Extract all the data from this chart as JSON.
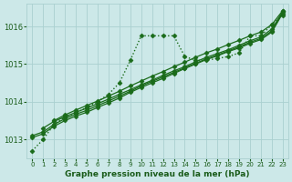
{
  "title": "Graphe pression niveau de la mer (hPa)",
  "background_color": "#cce8e8",
  "grid_color": "#aad0d0",
  "text_color": "#1a5c1a",
  "line_color": "#1a6b1a",
  "xlim": [
    -0.5,
    23.5
  ],
  "ylim": [
    1012.5,
    1016.6
  ],
  "yticks": [
    1013,
    1014,
    1015,
    1016
  ],
  "xticks": [
    0,
    1,
    2,
    3,
    4,
    5,
    6,
    7,
    8,
    9,
    10,
    11,
    12,
    13,
    14,
    15,
    16,
    17,
    18,
    19,
    20,
    21,
    22,
    23
  ],
  "series": [
    {
      "x": [
        0,
        1,
        2,
        3,
        4,
        5,
        6,
        7,
        8,
        9,
        10,
        11,
        12,
        13,
        14,
        15,
        16,
        17,
        18,
        19,
        20,
        21,
        22,
        23
      ],
      "y": [
        1012.7,
        1013.0,
        1013.4,
        1013.6,
        1013.7,
        1013.85,
        1014.0,
        1014.2,
        1014.5,
        1015.1,
        1015.75,
        1015.75,
        1015.75,
        1015.75,
        1015.2,
        1015.1,
        1015.1,
        1015.15,
        1015.2,
        1015.3,
        1015.75,
        1015.75,
        1016.05,
        1016.3
      ],
      "style": "dotted",
      "marker": "D",
      "markersize": 2.5,
      "linewidth": 1.0
    },
    {
      "x": [
        0,
        1,
        2,
        3,
        4,
        5,
        6,
        7,
        8,
        9,
        10,
        11,
        12,
        13,
        14,
        15,
        16,
        17,
        18,
        19,
        20,
        21,
        22,
        23
      ],
      "y": [
        1013.05,
        1013.15,
        1013.35,
        1013.5,
        1013.62,
        1013.72,
        1013.85,
        1013.97,
        1014.1,
        1014.25,
        1014.38,
        1014.5,
        1014.62,
        1014.75,
        1014.88,
        1015.0,
        1015.12,
        1015.22,
        1015.33,
        1015.43,
        1015.55,
        1015.65,
        1015.85,
        1016.35
      ],
      "style": "solid",
      "marker": "D",
      "markersize": 2.5,
      "linewidth": 0.9
    },
    {
      "x": [
        0,
        1,
        2,
        3,
        4,
        5,
        6,
        7,
        8,
        9,
        10,
        11,
        12,
        13,
        14,
        15,
        16,
        17,
        18,
        19,
        20,
        21,
        22,
        23
      ],
      "y": [
        1013.1,
        1013.2,
        1013.4,
        1013.55,
        1013.67,
        1013.77,
        1013.9,
        1014.02,
        1014.15,
        1014.28,
        1014.42,
        1014.54,
        1014.66,
        1014.78,
        1014.9,
        1015.02,
        1015.14,
        1015.24,
        1015.35,
        1015.46,
        1015.58,
        1015.68,
        1015.88,
        1016.38
      ],
      "style": "solid",
      "marker": "D",
      "markersize": 2.5,
      "linewidth": 0.9
    },
    {
      "x": [
        1,
        2,
        3,
        4,
        5,
        6,
        7,
        8,
        9,
        10,
        11,
        12,
        13,
        14,
        15,
        16,
        17,
        18,
        19,
        20,
        21,
        22,
        23
      ],
      "y": [
        1013.3,
        1013.48,
        1013.6,
        1013.72,
        1013.83,
        1013.95,
        1014.07,
        1014.2,
        1014.32,
        1014.45,
        1014.57,
        1014.7,
        1014.82,
        1014.93,
        1015.06,
        1015.18,
        1015.28,
        1015.38,
        1015.5,
        1015.62,
        1015.72,
        1015.93,
        1016.4
      ],
      "style": "solid",
      "marker": "D",
      "markersize": 2.5,
      "linewidth": 0.9
    },
    {
      "x": [
        2,
        3,
        4,
        5,
        6,
        7,
        8,
        9,
        10,
        11,
        12,
        13,
        14,
        15,
        16,
        17,
        18,
        19,
        20,
        21,
        22,
        23
      ],
      "y": [
        1013.5,
        1013.65,
        1013.78,
        1013.9,
        1014.02,
        1014.15,
        1014.28,
        1014.42,
        1014.55,
        1014.68,
        1014.8,
        1014.93,
        1015.05,
        1015.18,
        1015.3,
        1015.4,
        1015.52,
        1015.63,
        1015.75,
        1015.85,
        1016.05,
        1016.42
      ],
      "style": "solid",
      "marker": "D",
      "markersize": 2.5,
      "linewidth": 0.9
    }
  ]
}
